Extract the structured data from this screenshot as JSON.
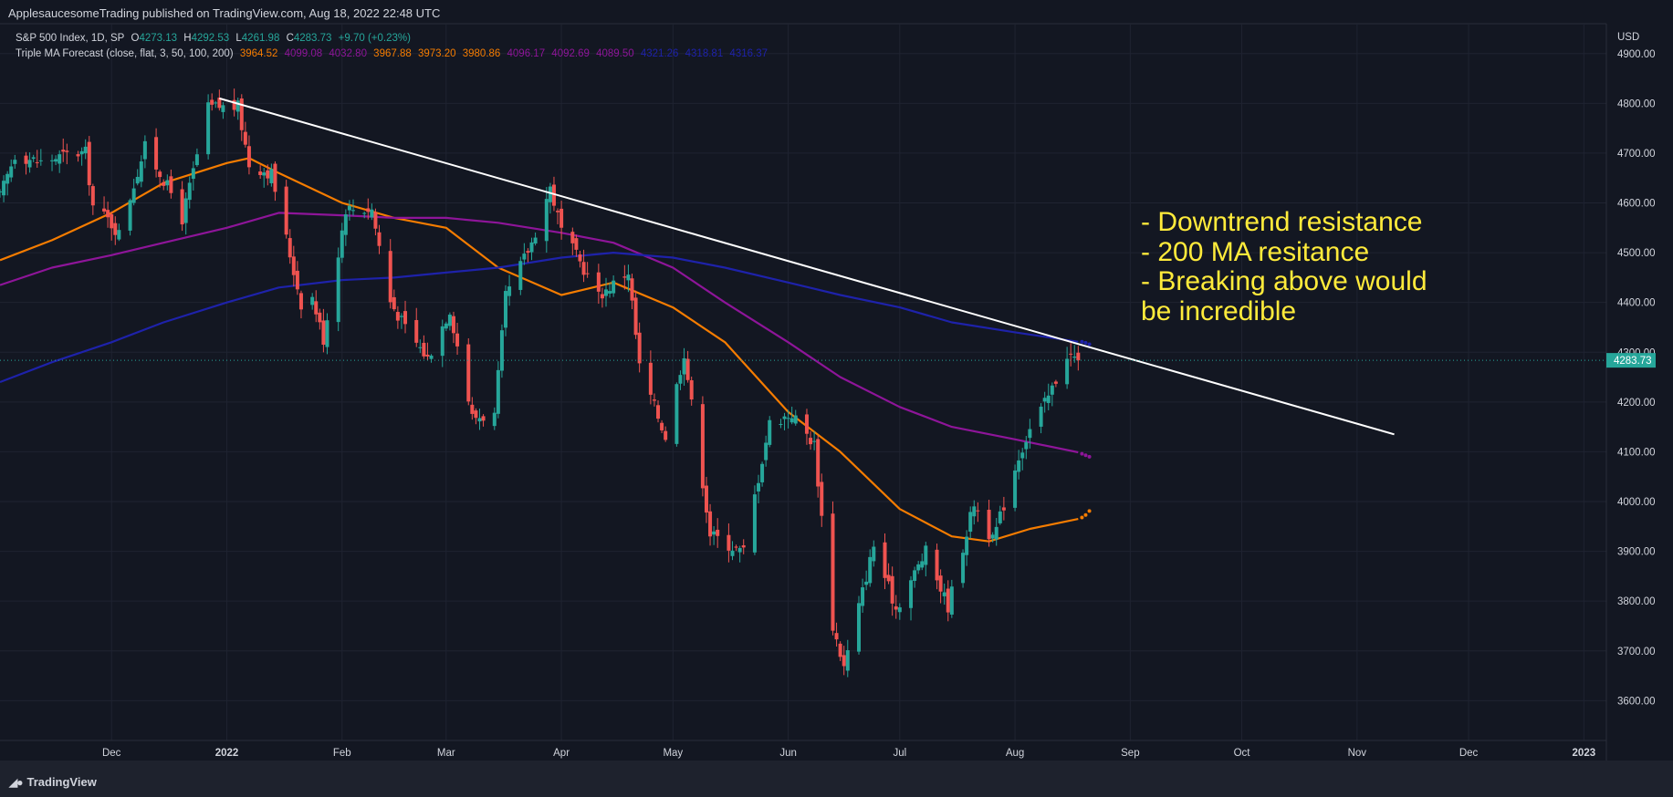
{
  "header": {
    "published": "ApplesaucesomeTrading published on TradingView.com, Aug 18, 2022 22:48 UTC"
  },
  "legend": {
    "symbol": "S&P 500 Index, 1D, SP",
    "open_label": "O",
    "open": "4273.13",
    "high_label": "H",
    "high": "4292.53",
    "low_label": "L",
    "low": "4261.98",
    "close_label": "C",
    "close": "4283.73",
    "change": "+9.70 (+0.23%)",
    "indicator": "Triple MA Forecast (close, flat, 3, 50, 100, 200)",
    "indicator_values": [
      {
        "value": "3964.52",
        "color": "#f57c00"
      },
      {
        "value": "4099.08",
        "color": "#8e1599"
      },
      {
        "value": "4032.80",
        "color": "#8e1599"
      },
      {
        "value": "3967.88",
        "color": "#f57c00"
      },
      {
        "value": "3973.20",
        "color": "#f57c00"
      },
      {
        "value": "3980.86",
        "color": "#f57c00"
      },
      {
        "value": "4096.17",
        "color": "#8e1599"
      },
      {
        "value": "4092.69",
        "color": "#8e1599"
      },
      {
        "value": "4089.50",
        "color": "#8e1599"
      },
      {
        "value": "4321.26",
        "color": "#1e22aa"
      },
      {
        "value": "4318.81",
        "color": "#1e22aa"
      },
      {
        "value": "4316.37",
        "color": "#1e22aa"
      }
    ]
  },
  "annotation": {
    "lines": [
      "- Downtrend resistance",
      "- 200 MA resitance",
      "- Breaking above would",
      "be incredible"
    ],
    "color": "#ffeb3b"
  },
  "footer": {
    "brand": "TradingView"
  },
  "colors": {
    "background": "#131722",
    "up": "#26a69a",
    "down": "#ef5350",
    "ma50": "#f57c00",
    "ma100": "#8e1599",
    "ma200": "#1e22aa",
    "trendline": "#ffffff",
    "annotation": "#ffeb3b"
  },
  "chart_data": {
    "type": "candlestick",
    "currency_label": "USD",
    "last_price_label": "4283.73",
    "last_price": 4283.73,
    "ylim": [
      3520,
      4960
    ],
    "y_ticks": [
      3600,
      3700,
      3800,
      3900,
      4000,
      4100,
      4200,
      4300,
      4400,
      4500,
      4600,
      4700,
      4800,
      4900
    ],
    "y_tick_labels": [
      "3600.00",
      "3700.00",
      "3800.00",
      "3900.00",
      "4000.00",
      "4100.00",
      "4200.00",
      "4300.00",
      "4400.00",
      "4500.00",
      "4600.00",
      "4700.00",
      "4800.00",
      "4900.00"
    ],
    "x_range": [
      "2021-11-01",
      "2023-01-10"
    ],
    "x_ticks": [
      {
        "label": "Dec",
        "date": "2021-12-01",
        "bold": false
      },
      {
        "label": "2022",
        "date": "2022-01-01",
        "bold": true
      },
      {
        "label": "Feb",
        "date": "2022-02-01",
        "bold": false
      },
      {
        "label": "Mar",
        "date": "2022-03-01",
        "bold": false
      },
      {
        "label": "Apr",
        "date": "2022-04-01",
        "bold": false
      },
      {
        "label": "May",
        "date": "2022-05-01",
        "bold": false
      },
      {
        "label": "Jun",
        "date": "2022-06-01",
        "bold": false
      },
      {
        "label": "Jul",
        "date": "2022-07-01",
        "bold": false
      },
      {
        "label": "Aug",
        "date": "2022-08-01",
        "bold": false
      },
      {
        "label": "Sep",
        "date": "2022-09-01",
        "bold": false
      },
      {
        "label": "Oct",
        "date": "2022-10-01",
        "bold": false
      },
      {
        "label": "Nov",
        "date": "2022-11-01",
        "bold": false
      },
      {
        "label": "Dec",
        "date": "2022-12-01",
        "bold": false
      },
      {
        "label": "2023",
        "date": "2023-01-01",
        "bold": true
      }
    ],
    "close_path": [
      [
        "2021-11-01",
        4613
      ],
      [
        "2021-11-05",
        4697
      ],
      [
        "2021-11-12",
        4682
      ],
      [
        "2021-11-19",
        4697
      ],
      [
        "2021-11-24",
        4701
      ],
      [
        "2021-11-26",
        4594
      ],
      [
        "2021-11-30",
        4567
      ],
      [
        "2021-12-03",
        4538
      ],
      [
        "2021-12-10",
        4712
      ],
      [
        "2021-12-17",
        4620
      ],
      [
        "2021-12-20",
        4568
      ],
      [
        "2021-12-27",
        4791
      ],
      [
        "2021-12-29",
        4793
      ],
      [
        "2022-01-04",
        4793
      ],
      [
        "2022-01-07",
        4677
      ],
      [
        "2022-01-13",
        4659
      ],
      [
        "2022-01-21",
        4398
      ],
      [
        "2022-01-24",
        4410
      ],
      [
        "2022-01-27",
        4326
      ],
      [
        "2022-02-02",
        4589
      ],
      [
        "2022-02-09",
        4587
      ],
      [
        "2022-02-14",
        4402
      ],
      [
        "2022-02-18",
        4349
      ],
      [
        "2022-02-24",
        4288
      ],
      [
        "2022-03-02",
        4386
      ],
      [
        "2022-03-08",
        4170
      ],
      [
        "2022-03-14",
        4173
      ],
      [
        "2022-03-17",
        4411
      ],
      [
        "2022-03-24",
        4520
      ],
      [
        "2022-03-29",
        4631
      ],
      [
        "2022-04-01",
        4545
      ],
      [
        "2022-04-06",
        4481
      ],
      [
        "2022-04-11",
        4413
      ],
      [
        "2022-04-19",
        4462
      ],
      [
        "2022-04-22",
        4271
      ],
      [
        "2022-04-29",
        4131
      ],
      [
        "2022-05-04",
        4300
      ],
      [
        "2022-05-11",
        3935
      ],
      [
        "2022-05-19",
        3900
      ],
      [
        "2022-05-20",
        3901
      ],
      [
        "2022-05-27",
        4158
      ],
      [
        "2022-06-02",
        4176
      ],
      [
        "2022-06-08",
        4115
      ],
      [
        "2022-06-13",
        3750
      ],
      [
        "2022-06-16",
        3667
      ],
      [
        "2022-06-24",
        3912
      ],
      [
        "2022-06-30",
        3785
      ],
      [
        "2022-07-08",
        3899
      ],
      [
        "2022-07-14",
        3790
      ],
      [
        "2022-07-21",
        3998
      ],
      [
        "2022-07-26",
        3921
      ],
      [
        "2022-08-02",
        4091
      ],
      [
        "2022-08-05",
        4145
      ],
      [
        "2022-08-10",
        4210
      ],
      [
        "2022-08-15",
        4297
      ],
      [
        "2022-08-18",
        4283.73
      ]
    ],
    "series": [
      {
        "name": "MA 50",
        "color": "#f57c00",
        "values": [
          [
            "2021-11-01",
            4485
          ],
          [
            "2021-11-15",
            4525
          ],
          [
            "2021-12-01",
            4580
          ],
          [
            "2021-12-15",
            4640
          ],
          [
            "2022-01-01",
            4680
          ],
          [
            "2022-01-07",
            4690
          ],
          [
            "2022-01-15",
            4660
          ],
          [
            "2022-02-01",
            4600
          ],
          [
            "2022-02-15",
            4570
          ],
          [
            "2022-03-01",
            4550
          ],
          [
            "2022-03-15",
            4470
          ],
          [
            "2022-04-01",
            4415
          ],
          [
            "2022-04-15",
            4440
          ],
          [
            "2022-05-01",
            4390
          ],
          [
            "2022-05-15",
            4320
          ],
          [
            "2022-06-01",
            4180
          ],
          [
            "2022-06-15",
            4100
          ],
          [
            "2022-07-01",
            3985
          ],
          [
            "2022-07-15",
            3930
          ],
          [
            "2022-07-25",
            3920
          ],
          [
            "2022-08-05",
            3945
          ],
          [
            "2022-08-18",
            3965
          ]
        ]
      },
      {
        "name": "MA 100",
        "color": "#8e1599",
        "values": [
          [
            "2021-11-01",
            4435
          ],
          [
            "2021-11-15",
            4470
          ],
          [
            "2021-12-01",
            4495
          ],
          [
            "2021-12-15",
            4520
          ],
          [
            "2022-01-01",
            4550
          ],
          [
            "2022-01-15",
            4580
          ],
          [
            "2022-02-01",
            4575
          ],
          [
            "2022-02-15",
            4570
          ],
          [
            "2022-03-01",
            4570
          ],
          [
            "2022-03-15",
            4560
          ],
          [
            "2022-04-01",
            4540
          ],
          [
            "2022-04-15",
            4520
          ],
          [
            "2022-05-01",
            4470
          ],
          [
            "2022-05-15",
            4400
          ],
          [
            "2022-06-01",
            4320
          ],
          [
            "2022-06-15",
            4250
          ],
          [
            "2022-07-01",
            4190
          ],
          [
            "2022-07-15",
            4150
          ],
          [
            "2022-08-01",
            4125
          ],
          [
            "2022-08-18",
            4099
          ]
        ]
      },
      {
        "name": "MA 200",
        "color": "#1e22aa",
        "values": [
          [
            "2021-11-01",
            4240
          ],
          [
            "2021-11-15",
            4280
          ],
          [
            "2021-12-01",
            4320
          ],
          [
            "2021-12-15",
            4360
          ],
          [
            "2022-01-01",
            4400
          ],
          [
            "2022-01-15",
            4430
          ],
          [
            "2022-02-01",
            4445
          ],
          [
            "2022-02-15",
            4450
          ],
          [
            "2022-03-01",
            4460
          ],
          [
            "2022-03-15",
            4470
          ],
          [
            "2022-04-01",
            4490
          ],
          [
            "2022-04-15",
            4500
          ],
          [
            "2022-05-01",
            4490
          ],
          [
            "2022-05-15",
            4470
          ],
          [
            "2022-06-01",
            4440
          ],
          [
            "2022-06-15",
            4415
          ],
          [
            "2022-07-01",
            4390
          ],
          [
            "2022-07-15",
            4360
          ],
          [
            "2022-08-01",
            4340
          ],
          [
            "2022-08-18",
            4321
          ]
        ]
      }
    ],
    "forecast_dots": [
      {
        "color": "#f57c00",
        "values": [
          [
            "2022-08-19",
            3968
          ],
          [
            "2022-08-20",
            3973
          ],
          [
            "2022-08-21",
            3981
          ]
        ]
      },
      {
        "color": "#8e1599",
        "values": [
          [
            "2022-08-19",
            4096
          ],
          [
            "2022-08-20",
            4093
          ],
          [
            "2022-08-21",
            4090
          ]
        ]
      },
      {
        "color": "#1e22aa",
        "values": [
          [
            "2022-08-19",
            4321
          ],
          [
            "2022-08-20",
            4319
          ],
          [
            "2022-08-21",
            4316
          ]
        ]
      }
    ],
    "trendline": {
      "color": "#ffffff",
      "start": [
        "2021-12-30",
        4810
      ],
      "end": [
        "2022-11-11",
        4135
      ]
    }
  }
}
